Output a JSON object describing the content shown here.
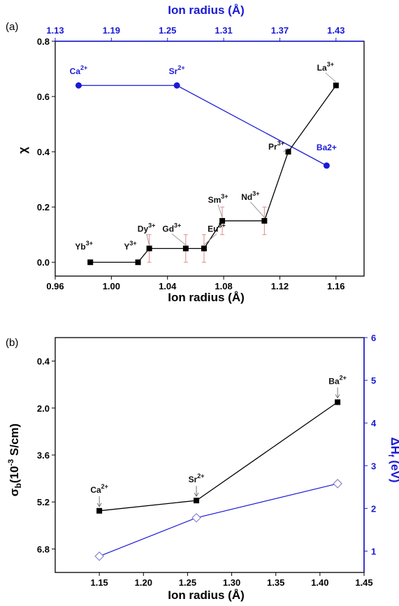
{
  "chart_data": [
    {
      "panel": "(a)",
      "type": "line",
      "xlabel": "Ion radius (Å)",
      "xlabel_top": "Ion radius (Å)",
      "ylabel": "χ",
      "xlim": [
        0.96,
        1.18
      ],
      "xlim_top": [
        1.13,
        1.46
      ],
      "ylim": [
        -0.05,
        0.8
      ],
      "x_ticks": [
        "0.96",
        "1.00",
        "1.04",
        "1.08",
        "1.12",
        "1.16"
      ],
      "x_ticks_top": [
        "1.13",
        "1.19",
        "1.25",
        "1.31",
        "1.37",
        "1.43"
      ],
      "y_ticks": [
        "0.0",
        "0.2",
        "0.4",
        "0.6",
        "0.8"
      ],
      "colors": {
        "lanthanide": "#000000",
        "alkaline": "#1a1ad6",
        "error": "#e08a8a"
      },
      "series": [
        {
          "axis": "bottom",
          "marker": "square",
          "points": [
            {
              "label": "Yb",
              "sup": "3+",
              "x": 0.985,
              "y": 0.0,
              "err": 0
            },
            {
              "label": "Y",
              "sup": "3+",
              "x": 1.019,
              "y": 0.0,
              "err": 0
            },
            {
              "label": "Dy",
              "sup": "3+",
              "x": 1.027,
              "y": 0.05,
              "err": 0.05
            },
            {
              "label": "Gd",
              "sup": "3+",
              "x": 1.053,
              "y": 0.05,
              "err": 0.05
            },
            {
              "label": "Eu",
              "sup": "3+",
              "x": 1.066,
              "y": 0.05,
              "err": 0.05
            },
            {
              "label": "Sm",
              "sup": "3+",
              "x": 1.079,
              "y": 0.15,
              "err": 0.05
            },
            {
              "label": "Nd",
              "sup": "3+",
              "x": 1.109,
              "y": 0.15,
              "err": 0.05
            },
            {
              "label": "Pr",
              "sup": "3+",
              "x": 1.126,
              "y": 0.4,
              "err": 0
            },
            {
              "label": "La",
              "sup": "3+",
              "x": 1.16,
              "y": 0.64,
              "err": 0
            }
          ]
        },
        {
          "axis": "top",
          "marker": "circle",
          "points": [
            {
              "label": "Ca",
              "sup": "2+",
              "x": 1.155,
              "y": 0.64
            },
            {
              "label": "Sr",
              "sup": "2+",
              "x": 1.26,
              "y": 0.64
            },
            {
              "label": "Ba2+",
              "sup": "",
              "x": 1.42,
              "y": 0.35
            }
          ]
        }
      ]
    },
    {
      "panel": "(b)",
      "type": "line",
      "xlabel": "Ion radius (Å)",
      "ylabel_left": "σb(10⁻³ S/cm)",
      "ylabel_right": "ΔHf (eV)",
      "xlim": [
        1.1,
        1.45
      ],
      "ylim_left_top": -0.4,
      "ylim_left_bottom": 7.6,
      "ylim_right": [
        0.5,
        6
      ],
      "x_ticks": [
        "1.15",
        "1.20",
        "1.25",
        "1.30",
        "1.35",
        "1.40",
        "1.45"
      ],
      "y_left_ticks": [
        "0.4",
        "2.0",
        "3.6",
        "5.2",
        "6.8"
      ],
      "y_right_ticks": [
        "1",
        "2",
        "3",
        "4",
        "5",
        "6"
      ],
      "colors": {
        "conductivity": "#000000",
        "enthalpy": "#1a1ad6",
        "enthalpy_marker": "#8888cc"
      },
      "series": [
        {
          "name": "σb",
          "axis": "left",
          "marker": "square",
          "points": [
            {
              "label": "Ca",
              "sup": "2+",
              "x": 1.15,
              "y": 5.5
            },
            {
              "label": "Sr",
              "sup": "2+",
              "x": 1.26,
              "y": 5.15
            },
            {
              "label": "Ba",
              "sup": "2+",
              "x": 1.42,
              "y": 1.8
            }
          ]
        },
        {
          "name": "ΔHf",
          "axis": "right",
          "marker": "diamond-open",
          "points": [
            {
              "x": 1.15,
              "y": 0.88
            },
            {
              "x": 1.26,
              "y": 1.78
            },
            {
              "x": 1.42,
              "y": 2.58
            }
          ]
        }
      ]
    }
  ]
}
